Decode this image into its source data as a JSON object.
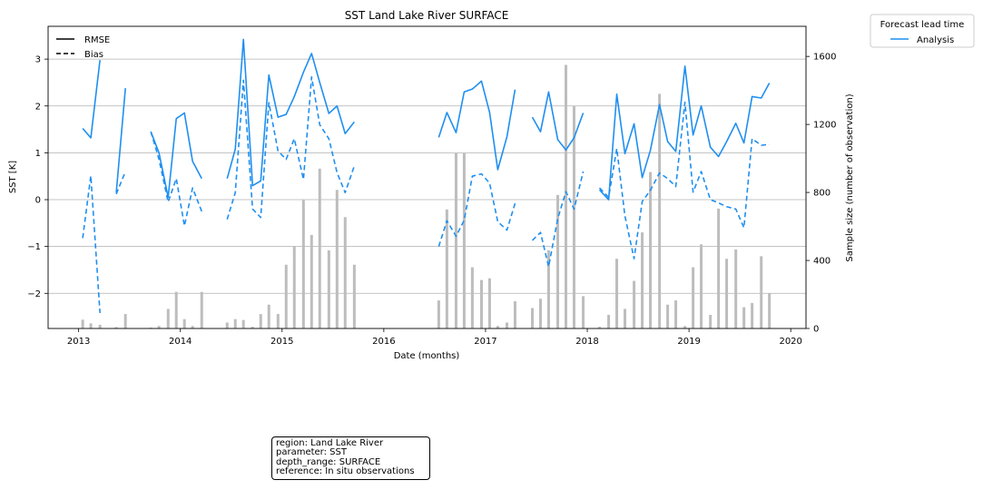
{
  "chart_data": {
    "type": "line",
    "title": "SST Land Lake River SURFACE",
    "xlabel": "Date (months)",
    "ylabel": "SST [K]",
    "y2label": "Sample size (number of observation)",
    "xlim": [
      2012.7,
      2020.15
    ],
    "ylim": [
      -2.75,
      3.7
    ],
    "y2lim": [
      0,
      1777
    ],
    "grid": "horizontal",
    "xticks": [
      2013,
      2014,
      2015,
      2016,
      2017,
      2018,
      2019,
      2020
    ],
    "yticks": [
      -2,
      -1,
      0,
      1,
      2,
      3
    ],
    "y2ticks": [
      0,
      400,
      800,
      1200,
      1600
    ],
    "style_legend": {
      "placement": "upper-left",
      "entries": [
        {
          "label": "RMSE",
          "dash": "solid"
        },
        {
          "label": "Bias",
          "dash": "dashed"
        }
      ]
    },
    "lead_time_legend": {
      "title": "Forecast lead time",
      "placement": "outside-upper-right",
      "entries": [
        {
          "label": "Analysis",
          "color": "#1f8ff0"
        }
      ]
    },
    "series": [
      {
        "name": "Analysis",
        "metric": "RMSE",
        "color": "#1f8ff0",
        "dash": "solid",
        "segments": [
          [
            [
              2013.04,
              1.52
            ],
            [
              2013.12,
              1.32
            ],
            [
              2013.21,
              2.98
            ]
          ],
          [
            [
              2013.37,
              0.15
            ],
            [
              2013.46,
              2.38
            ]
          ],
          [
            [
              2013.71,
              1.45
            ],
            [
              2013.79,
              1.0
            ],
            [
              2013.88,
              0.05
            ],
            [
              2013.96,
              1.73
            ],
            [
              2014.04,
              1.85
            ],
            [
              2014.12,
              0.82
            ],
            [
              2014.21,
              0.45
            ]
          ],
          [
            [
              2014.46,
              0.45
            ],
            [
              2014.54,
              1.08
            ],
            [
              2014.62,
              3.42
            ],
            [
              2014.71,
              0.3
            ],
            [
              2014.79,
              0.4
            ],
            [
              2014.87,
              2.66
            ],
            [
              2014.96,
              1.76
            ],
            [
              2015.04,
              1.82
            ],
            [
              2015.12,
              2.2
            ],
            [
              2015.21,
              2.72
            ],
            [
              2015.29,
              3.12
            ],
            [
              2015.37,
              2.5
            ],
            [
              2015.46,
              1.84
            ],
            [
              2015.54,
              2.0
            ],
            [
              2015.62,
              1.41
            ],
            [
              2015.71,
              1.66
            ]
          ]
        ]
      },
      {
        "name": "Analysis",
        "metric": "RMSE",
        "color": "#1f8ff0",
        "dash": "solid",
        "segments": [
          [
            [
              2016.54,
              1.33
            ],
            [
              2016.62,
              1.86
            ],
            [
              2016.71,
              1.43
            ],
            [
              2016.79,
              2.3
            ],
            [
              2016.87,
              2.36
            ],
            [
              2016.96,
              2.53
            ],
            [
              2017.04,
              1.86
            ],
            [
              2017.12,
              0.64
            ],
            [
              2017.21,
              1.34
            ],
            [
              2017.29,
              2.35
            ]
          ],
          [
            [
              2017.46,
              1.76
            ],
            [
              2017.54,
              1.45
            ],
            [
              2017.62,
              2.3
            ],
            [
              2017.71,
              1.28
            ],
            [
              2017.79,
              1.06
            ],
            [
              2017.87,
              1.32
            ],
            [
              2017.96,
              1.85
            ]
          ],
          [
            [
              2018.12,
              0.21
            ],
            [
              2018.21,
              0.0
            ],
            [
              2018.29,
              2.25
            ],
            [
              2018.37,
              0.98
            ],
            [
              2018.46,
              1.62
            ],
            [
              2018.54,
              0.47
            ],
            [
              2018.62,
              1.05
            ],
            [
              2018.71,
              2.03
            ],
            [
              2018.79,
              1.24
            ],
            [
              2018.87,
              1.03
            ],
            [
              2018.96,
              2.85
            ],
            [
              2019.04,
              1.38
            ],
            [
              2019.12,
              2.0
            ],
            [
              2019.21,
              1.12
            ],
            [
              2019.29,
              0.92
            ],
            [
              2019.37,
              1.24
            ],
            [
              2019.46,
              1.63
            ],
            [
              2019.54,
              1.21
            ],
            [
              2019.62,
              2.2
            ],
            [
              2019.71,
              2.17
            ],
            [
              2019.79,
              2.49
            ]
          ]
        ]
      },
      {
        "name": "Analysis",
        "metric": "Bias",
        "color": "#1f8ff0",
        "dash": "dashed",
        "segments": [
          [
            [
              2013.04,
              -0.82
            ],
            [
              2013.12,
              0.51
            ],
            [
              2013.21,
              -2.42
            ]
          ],
          [
            [
              2013.37,
              0.12
            ],
            [
              2013.46,
              0.6
            ]
          ],
          [
            [
              2013.71,
              1.45
            ],
            [
              2013.79,
              0.86
            ],
            [
              2013.88,
              -0.05
            ],
            [
              2013.96,
              0.45
            ],
            [
              2014.04,
              -0.56
            ],
            [
              2014.12,
              0.25
            ],
            [
              2014.21,
              -0.25
            ]
          ],
          [
            [
              2014.46,
              -0.42
            ],
            [
              2014.54,
              0.15
            ],
            [
              2014.62,
              2.55
            ],
            [
              2014.71,
              -0.2
            ],
            [
              2014.79,
              -0.38
            ],
            [
              2014.87,
              2.07
            ],
            [
              2014.96,
              1.04
            ],
            [
              2015.04,
              0.86
            ],
            [
              2015.12,
              1.3
            ],
            [
              2015.21,
              0.43
            ],
            [
              2015.29,
              2.62
            ],
            [
              2015.37,
              1.6
            ],
            [
              2015.46,
              1.3
            ],
            [
              2015.54,
              0.58
            ],
            [
              2015.62,
              0.15
            ],
            [
              2015.71,
              0.72
            ]
          ],
          [
            [
              2016.54,
              -1.0
            ],
            [
              2016.62,
              -0.45
            ],
            [
              2016.71,
              -0.78
            ],
            [
              2016.79,
              -0.44
            ],
            [
              2016.87,
              0.5
            ],
            [
              2016.96,
              0.55
            ],
            [
              2017.04,
              0.35
            ],
            [
              2017.12,
              -0.47
            ],
            [
              2017.21,
              -0.65
            ],
            [
              2017.29,
              -0.08
            ]
          ],
          [
            [
              2017.46,
              -0.87
            ],
            [
              2017.54,
              -0.7
            ],
            [
              2017.62,
              -1.43
            ],
            [
              2017.71,
              -0.4
            ],
            [
              2017.79,
              0.17
            ],
            [
              2017.87,
              -0.2
            ],
            [
              2017.96,
              0.6
            ]
          ],
          [
            [
              2018.12,
              0.25
            ],
            [
              2018.21,
              0.05
            ],
            [
              2018.29,
              1.09
            ],
            [
              2018.37,
              -0.35
            ],
            [
              2018.46,
              -1.26
            ],
            [
              2018.54,
              -0.04
            ],
            [
              2018.62,
              0.2
            ],
            [
              2018.71,
              0.57
            ],
            [
              2018.79,
              0.45
            ],
            [
              2018.87,
              0.28
            ],
            [
              2018.96,
              2.08
            ],
            [
              2019.04,
              0.16
            ],
            [
              2019.12,
              0.6
            ],
            [
              2019.21,
              0.0
            ],
            [
              2019.29,
              -0.07
            ],
            [
              2019.37,
              -0.15
            ],
            [
              2019.46,
              -0.2
            ],
            [
              2019.54,
              -0.6
            ],
            [
              2019.62,
              1.3
            ],
            [
              2019.71,
              1.16
            ],
            [
              2019.79,
              1.18
            ]
          ]
        ]
      }
    ],
    "sample_size": {
      "color": "#bdbdbd",
      "x": [
        2013.04,
        2013.12,
        2013.21,
        2013.37,
        2013.46,
        2013.71,
        2013.79,
        2013.88,
        2013.96,
        2014.04,
        2014.12,
        2014.21,
        2014.46,
        2014.54,
        2014.62,
        2014.71,
        2014.79,
        2014.87,
        2014.96,
        2015.04,
        2015.12,
        2015.21,
        2015.29,
        2015.37,
        2015.46,
        2015.54,
        2015.62,
        2015.71,
        2016.54,
        2016.62,
        2016.71,
        2016.79,
        2016.87,
        2016.96,
        2017.04,
        2017.12,
        2017.21,
        2017.29,
        2017.46,
        2017.54,
        2017.62,
        2017.71,
        2017.79,
        2017.87,
        2017.96,
        2018.12,
        2018.21,
        2018.29,
        2018.37,
        2018.46,
        2018.54,
        2018.62,
        2018.71,
        2018.79,
        2018.87,
        2018.96,
        2019.04,
        2019.12,
        2019.21,
        2019.29,
        2019.37,
        2019.46,
        2019.54,
        2019.62,
        2019.71,
        2019.79
      ],
      "values": [
        52,
        30,
        22,
        8,
        85,
        5,
        15,
        115,
        215,
        55,
        15,
        215,
        35,
        55,
        50,
        10,
        85,
        140,
        85,
        375,
        485,
        755,
        550,
        940,
        460,
        815,
        655,
        375,
        165,
        700,
        1030,
        1030,
        360,
        285,
        295,
        15,
        35,
        160,
        120,
        175,
        460,
        785,
        1550,
        1310,
        190,
        10,
        80,
        410,
        115,
        280,
        565,
        920,
        1380,
        140,
        165,
        15,
        360,
        495,
        80,
        705,
        410,
        465,
        125,
        150,
        425,
        205
      ]
    }
  },
  "info_box": {
    "lines": [
      "region: Land Lake River",
      "parameter: SST",
      "depth_range: SURFACE",
      "reference: In situ observations"
    ]
  }
}
